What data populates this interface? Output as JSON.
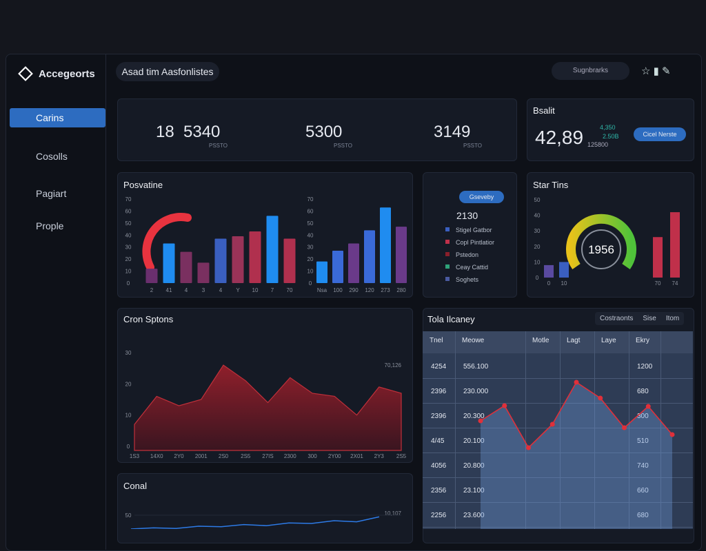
{
  "sidebar": {
    "brand": "Accegeorts",
    "nav": [
      "Carins",
      "Cosolls",
      "Pagiart",
      "Prople"
    ]
  },
  "header": {
    "title": "Asad tim Aasfonlistes",
    "search": "Sugnbrarks"
  },
  "stats": [
    {
      "number": "18",
      "value": "5340",
      "caption": "PSSTO"
    },
    {
      "value": "5300",
      "caption": "PSSTO"
    },
    {
      "value": "3149",
      "caption": "PSSTO"
    }
  ],
  "balance": {
    "title": "Bsalit",
    "value": "42,89",
    "change": "4,350",
    "change2": "2.50B",
    "sub": "125800",
    "button": "Cicel Nerste"
  },
  "bars_panel": {
    "title": "Posvatine",
    "yticks": [
      0,
      10,
      20,
      30,
      40,
      50,
      60,
      70
    ],
    "groups": [
      {
        "categories": [
          "2",
          "41",
          "4",
          "3",
          "4",
          "Y",
          "10",
          "7",
          "70"
        ],
        "values": [
          12,
          33,
          26,
          17,
          37,
          39,
          43,
          56,
          37
        ],
        "colors": [
          "#6a2f6e",
          "#1f8cf0",
          "#7a3060",
          "#7a3060",
          "#3a5fc0",
          "#9a3358",
          "#b0304e",
          "#1f8cf0",
          "#b0304e"
        ]
      },
      {
        "categories": [
          "Nsa",
          "100",
          "290",
          "120",
          "273",
          "280"
        ],
        "values": [
          18,
          27,
          33,
          44,
          63,
          47
        ],
        "colors": [
          "#1f8cf0",
          "#3a6ad8",
          "#6a3a8a",
          "#3a6ad8",
          "#1f8cf0",
          "#6a3a8a"
        ]
      }
    ]
  },
  "legend_panel": {
    "button": "Gseveby",
    "value": "2130",
    "items": [
      "Stigel Gatbor",
      "Copl Pintlatior",
      "Pstedon",
      "Ceay Cattid",
      "Soghets"
    ]
  },
  "gauge_panel": {
    "title": "Star Tins",
    "gauge_value": "1956",
    "yticks": [
      0,
      10,
      20,
      30,
      40,
      50
    ],
    "categories": [
      "0",
      "10",
      "70",
      "74"
    ],
    "values": [
      8,
      10,
      26,
      42
    ],
    "colors": [
      "#5a4aa0",
      "#3a5fc0",
      "#c0304a",
      "#c0304a"
    ]
  },
  "area_panel": {
    "title": "Cron Sptons",
    "annotation": "70,126",
    "yticks": [
      0,
      10,
      20,
      30
    ],
    "categories": [
      "1S3",
      "14X0",
      "2Y0",
      "2001",
      "2S0",
      "2S5",
      "27IS",
      "2300",
      "300",
      "2Y00",
      "2X01",
      "2Y3",
      "2S5"
    ],
    "values": [
      7,
      16,
      13,
      15,
      26,
      21,
      14,
      22,
      17,
      16,
      10,
      19,
      17
    ]
  },
  "table_panel": {
    "title": "Tola Ilcaney",
    "tabs": [
      "Costraonts",
      "Sise",
      "Itom"
    ],
    "columns": [
      "Tnel",
      "Meowe",
      "Motle",
      "Lagt",
      "Laye",
      "Ekry"
    ],
    "rows": [
      [
        "4254",
        "556.100",
        "1200"
      ],
      [
        "2396",
        "230.000",
        "680"
      ],
      [
        "2396",
        "20.300",
        "300"
      ],
      [
        "4/45",
        "20.100",
        "510"
      ],
      [
        "4056",
        "20.800",
        "740"
      ],
      [
        "2356",
        "23.100",
        "660"
      ],
      [
        "2256",
        "23.600",
        "680"
      ]
    ],
    "line": [
      69,
      91,
      30,
      64,
      125,
      102,
      59,
      90,
      49
    ]
  },
  "line_panel": {
    "title": "Conal",
    "ytick": 50,
    "annotation": "10,107",
    "values": [
      25,
      27,
      26,
      30,
      29,
      33,
      31,
      36,
      35,
      40,
      38,
      47
    ]
  }
}
